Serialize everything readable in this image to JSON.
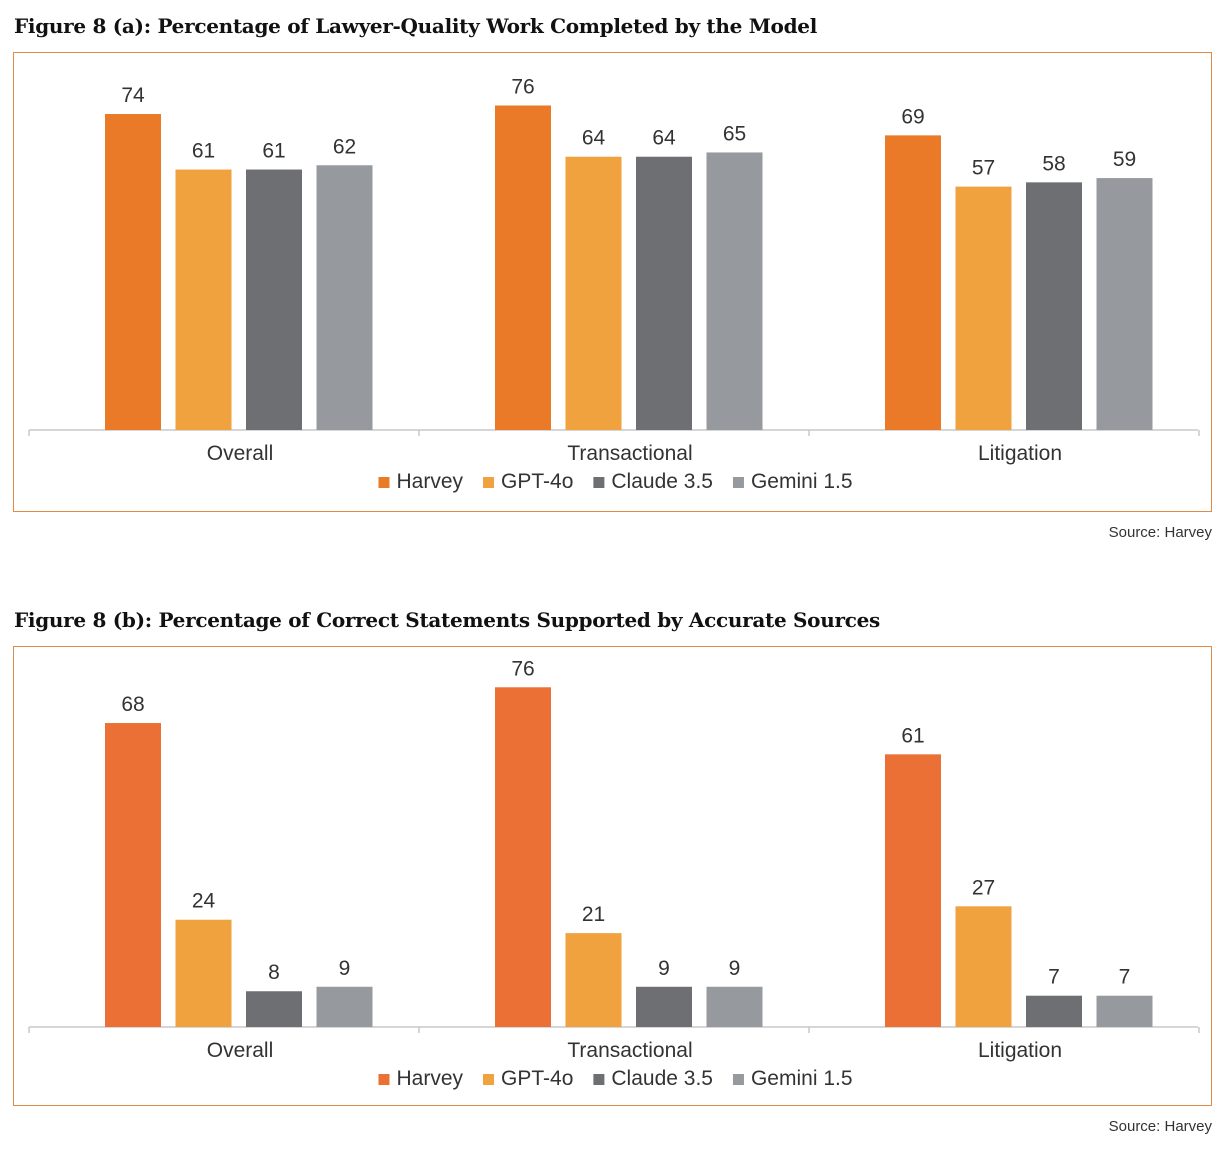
{
  "colors": {
    "Harvey_a": "#eb7a28",
    "Harvey_b": "#eb7035",
    "GPT-4o": "#f0a23e",
    "Claude 3.5": "#6e6f72",
    "Gemini 1.5": "#969a9e",
    "frame": "#e08b4a"
  },
  "figures": [
    {
      "title": "Figure 8 (a): Percentage of Lawyer-Quality Work Completed by the Model",
      "source": "Source: Harvey"
    },
    {
      "title": "Figure 8 (b): Percentage of Correct Statements Supported by Accurate Sources",
      "source": "Source: Harvey"
    }
  ],
  "chart_data": [
    {
      "type": "bar",
      "title": "Figure 8 (a): Percentage of Lawyer-Quality Work Completed by the Model",
      "categories": [
        "Overall",
        "Transactional",
        "Litigation"
      ],
      "series": [
        {
          "name": "Harvey",
          "values": [
            74,
            76,
            69
          ]
        },
        {
          "name": "GPT-4o",
          "values": [
            61,
            64,
            57
          ]
        },
        {
          "name": "Claude 3.5",
          "values": [
            61,
            64,
            58
          ]
        },
        {
          "name": "Gemini 1.5",
          "values": [
            62,
            65,
            59
          ]
        }
      ],
      "ylim": [
        0,
        80
      ],
      "grid": false,
      "legend": "bottom-center",
      "data_labels": true
    },
    {
      "type": "bar",
      "title": "Figure 8 (b): Percentage of Correct Statements Supported by Accurate Sources",
      "categories": [
        "Overall",
        "Transactional",
        "Litigation"
      ],
      "series": [
        {
          "name": "Harvey",
          "values": [
            68,
            76,
            61
          ]
        },
        {
          "name": "GPT-4o",
          "values": [
            24,
            21,
            27
          ]
        },
        {
          "name": "Claude 3.5",
          "values": [
            8,
            9,
            7
          ]
        },
        {
          "name": "Gemini 1.5",
          "values": [
            9,
            9,
            7
          ]
        }
      ],
      "ylim": [
        0,
        80
      ],
      "grid": false,
      "legend": "bottom-center",
      "data_labels": true
    }
  ]
}
